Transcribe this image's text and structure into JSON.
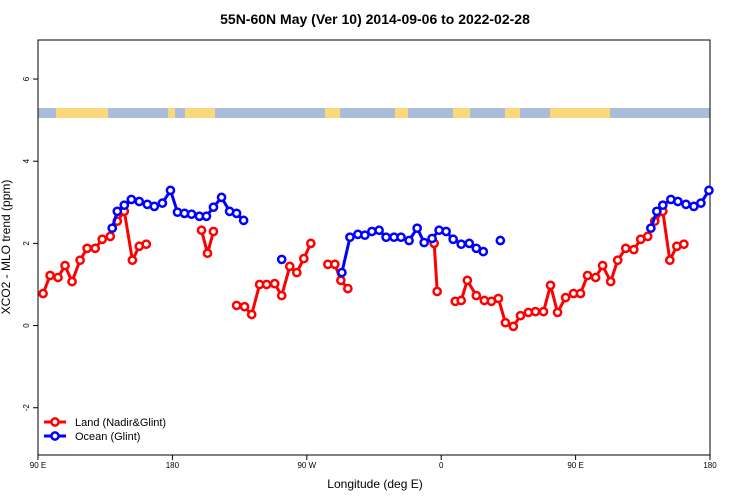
{
  "chart_data": {
    "type": "line",
    "title": "55N-60N May (Ver 10)   2014-09-06 to 2022-02-28",
    "x_label": "Longitude (deg E)",
    "y_label": "XCO2 - MLO trend (ppm)",
    "xlim": [
      90,
      540
    ],
    "ylim": [
      -3.15,
      6.95
    ],
    "xticks": [
      {
        "value": 90,
        "label": "90 E"
      },
      {
        "value": 180,
        "label": "180"
      },
      {
        "value": 270,
        "label": "90 W"
      },
      {
        "value": 360,
        "label": "0"
      },
      {
        "value": 450,
        "label": "90 E"
      },
      {
        "value": 540,
        "label": "180"
      }
    ],
    "yticks": [
      -2,
      0,
      2,
      4,
      6
    ],
    "legend": "bottomleft",
    "series": [
      {
        "name": "Land (Nadir&Glint)",
        "color": "#ff0000",
        "x": [
          93.4,
          98.1,
          103.4,
          108.1,
          112.8,
          118.2,
          122.9,
          128.3,
          133.0,
          138.4,
          143.1,
          147.8,
          153.2,
          157.8,
          162.5,
          null,
          199.5,
          203.5,
          207.5,
          null,
          223.0,
          228.3,
          233.1,
          238.4,
          243.1,
          248.5,
          253.2,
          258.6,
          263.3,
          268.0,
          272.7,
          null,
          284.1,
          288.8,
          292.8,
          297.5,
          null,
          355.3,
          357.3,
          null,
          369.4,
          373.4,
          377.5,
          383.5,
          388.9,
          393.6,
          398.3,
          403.0,
          408.3,
          413.1,
          418.4,
          423.1,
          428.5,
          433.2,
          437.9,
          443.3,
          448.6,
          453.3,
          458.0,
          463.4,
          468.1,
          473.5,
          478.2,
          483.6,
          489.0,
          493.6,
          498.3,
          503.0,
          508.4,
          513.1,
          517.8,
          522.5
        ],
        "values": [
          0.78,
          1.22,
          1.17,
          1.46,
          1.07,
          1.59,
          1.88,
          1.88,
          2.1,
          2.17,
          2.54,
          2.78,
          1.59,
          1.93,
          1.98,
          null,
          2.32,
          1.76,
          2.29,
          null,
          0.49,
          0.46,
          0.27,
          1.0,
          1.0,
          1.02,
          0.73,
          1.44,
          1.29,
          1.63,
          2.0,
          null,
          1.49,
          1.49,
          1.1,
          0.9,
          null,
          2.0,
          0.83,
          null,
          0.59,
          0.61,
          1.1,
          0.73,
          0.61,
          0.59,
          0.66,
          0.07,
          -0.02,
          0.24,
          0.32,
          0.34,
          0.34,
          0.98,
          0.32,
          0.68,
          0.78,
          0.78,
          1.22,
          1.17,
          1.46,
          1.07,
          1.59,
          1.88,
          1.85,
          2.1,
          2.17,
          2.54,
          2.78,
          1.59,
          1.93,
          1.98
        ]
      },
      {
        "name": "Ocean (Glint)",
        "color": "#0000ff",
        "x": [
          139.7,
          143.1,
          147.8,
          152.5,
          157.8,
          163.2,
          167.9,
          173.3,
          178.7,
          183.4,
          188.1,
          192.8,
          198.1,
          202.8,
          207.5,
          212.9,
          218.3,
          223.0,
          227.7,
          null,
          253.2,
          null,
          293.5,
          298.9,
          304.2,
          308.9,
          313.6,
          318.4,
          323.1,
          328.4,
          333.1,
          338.5,
          343.9,
          348.6,
          353.9,
          358.6,
          363.3,
          368.0,
          373.4,
          378.8,
          383.5,
          388.2,
          null,
          399.6,
          null,
          500.4,
          504.4,
          508.4,
          513.8,
          518.5,
          523.9,
          529.2,
          533.9,
          539.3
        ],
        "values": [
          2.37,
          2.78,
          2.93,
          3.07,
          3.02,
          2.95,
          2.9,
          2.98,
          3.29,
          2.76,
          2.73,
          2.71,
          2.66,
          2.66,
          2.88,
          3.12,
          2.78,
          2.73,
          2.56,
          null,
          1.61,
          null,
          1.29,
          2.15,
          2.22,
          2.2,
          2.29,
          2.32,
          2.15,
          2.15,
          2.15,
          2.07,
          2.37,
          2.02,
          2.12,
          2.32,
          2.29,
          2.1,
          1.98,
          2.0,
          1.88,
          1.8,
          null,
          2.07,
          null,
          2.37,
          2.78,
          2.93,
          3.07,
          3.02,
          2.95,
          2.9,
          2.98,
          3.29
        ]
      }
    ]
  }
}
